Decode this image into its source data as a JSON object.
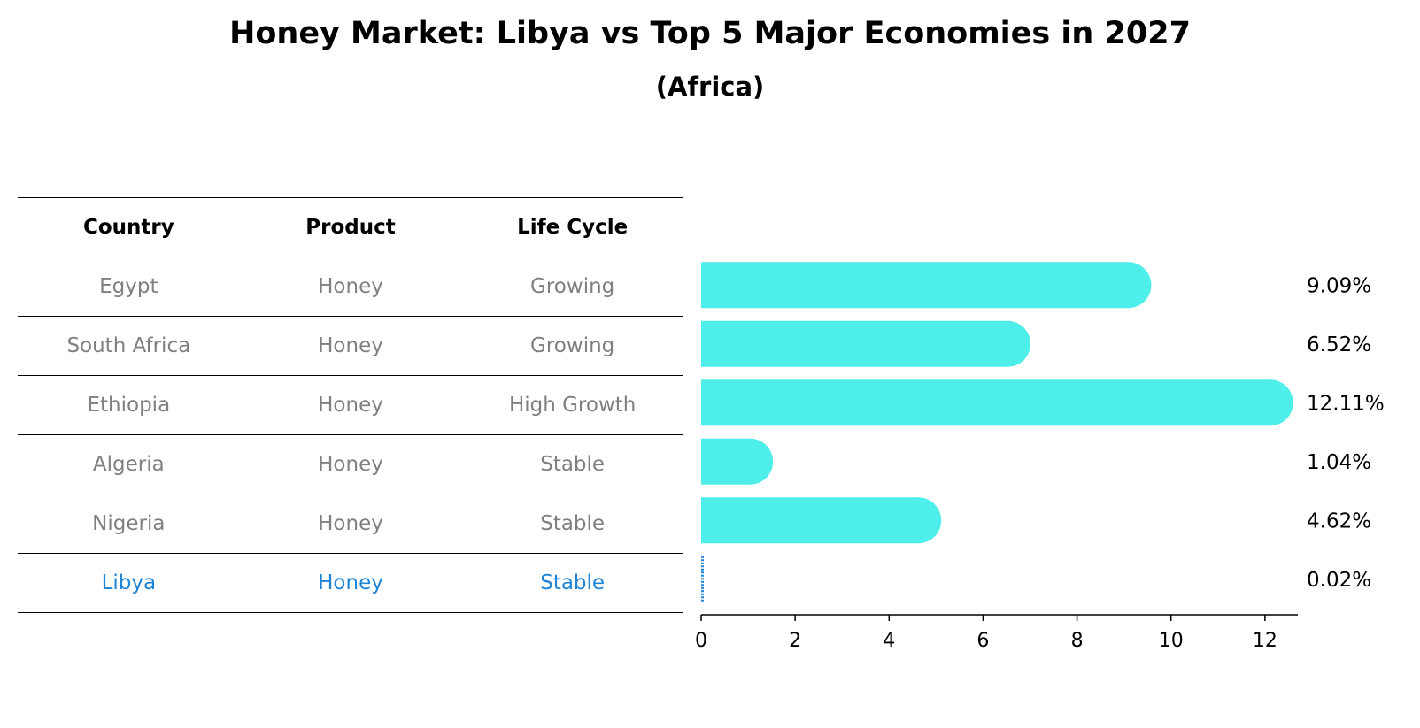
{
  "title": "Honey Market: Libya vs Top 5 Major Economies in 2027",
  "subtitle": "(Africa)",
  "table": {
    "headers": [
      "Country",
      "Product",
      "Life Cycle"
    ],
    "rows": [
      {
        "country": "Egypt",
        "product": "Honey",
        "life_cycle": "Growing"
      },
      {
        "country": "South Africa",
        "product": "Honey",
        "life_cycle": "Growing"
      },
      {
        "country": "Ethiopia",
        "product": "Honey",
        "life_cycle": "High Growth"
      },
      {
        "country": "Algeria",
        "product": "Honey",
        "life_cycle": "Stable"
      },
      {
        "country": "Nigeria",
        "product": "Honey",
        "life_cycle": "Stable"
      },
      {
        "country": "Libya",
        "product": "Honey",
        "life_cycle": "Stable"
      }
    ],
    "highlight_country": "Libya",
    "highlight_color": "#1f83d6",
    "text_color": "#808080"
  },
  "chart_data": {
    "type": "bar",
    "orientation": "horizontal",
    "categories": [
      "Egypt",
      "South Africa",
      "Ethiopia",
      "Algeria",
      "Nigeria",
      "Libya"
    ],
    "values": [
      9.09,
      6.52,
      12.11,
      1.04,
      4.62,
      0.02
    ],
    "value_labels": [
      "9.09%",
      "6.52%",
      "12.11%",
      "1.04%",
      "4.62%",
      "0.02%"
    ],
    "bar_color": "#4eeeeb",
    "highlight_bar_color": "#1f83d6",
    "xlim": [
      0,
      12.7
    ],
    "xticks": [
      0,
      2,
      4,
      6,
      8,
      10,
      12
    ],
    "grid": false
  }
}
